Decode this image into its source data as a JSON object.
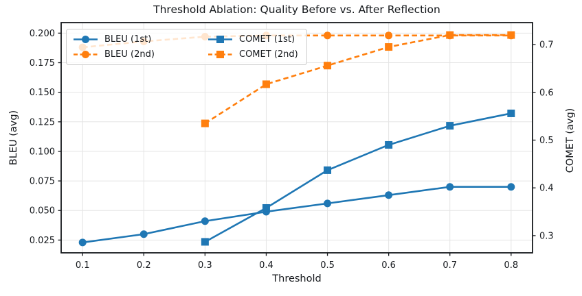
{
  "title": "Threshold Ablation: Quality Before vs. After Reflection",
  "chart_data": {
    "type": "line",
    "title": "Threshold Ablation: Quality Before vs. After Reflection",
    "xlabel": "Threshold",
    "ylabel_left": "BLEU (avg)",
    "ylabel_right": "COMET (avg)",
    "xlim": [
      0.065,
      0.835
    ],
    "ylim_left": [
      0.0142,
      0.2089
    ],
    "ylim_right": [
      0.264,
      0.746
    ],
    "x_ticks": [
      0.1,
      0.2,
      0.3,
      0.4,
      0.5,
      0.6,
      0.7,
      0.8
    ],
    "x_tick_labels": [
      "0.1",
      "0.2",
      "0.3",
      "0.4",
      "0.5",
      "0.6",
      "0.7",
      "0.8"
    ],
    "y_ticks_left": [
      0.025,
      0.05,
      0.075,
      0.1,
      0.125,
      0.15,
      0.175,
      0.2
    ],
    "y_tick_labels_left": [
      "0.025",
      "0.050",
      "0.075",
      "0.100",
      "0.125",
      "0.150",
      "0.175",
      "0.200"
    ],
    "y_ticks_right": [
      0.3,
      0.4,
      0.5,
      0.6,
      0.7
    ],
    "y_tick_labels_right": [
      "0.3",
      "0.4",
      "0.5",
      "0.6",
      "0.7"
    ],
    "grid": true,
    "legend_position": "upper left",
    "series": [
      {
        "name": "BLEU (1st)",
        "axis": "left",
        "color": "#1f77b4",
        "marker": "circle",
        "linestyle": "solid",
        "x": [
          0.1,
          0.2,
          0.3,
          0.4,
          0.5,
          0.6,
          0.7,
          0.8
        ],
        "values": [
          0.023,
          0.03,
          0.041,
          0.049,
          0.056,
          0.063,
          0.07,
          0.07
        ]
      },
      {
        "name": "BLEU (2nd)",
        "axis": "left",
        "color": "#ff7f0e",
        "marker": "circle",
        "linestyle": "dashed",
        "x": [
          0.1,
          0.2,
          0.3,
          0.4,
          0.5,
          0.6,
          0.7,
          0.8
        ],
        "values": [
          0.188,
          0.193,
          0.197,
          0.198,
          0.198,
          0.198,
          0.198,
          0.198
        ]
      },
      {
        "name": "COMET (1st)",
        "axis": "right",
        "color": "#1f77b4",
        "marker": "square",
        "linestyle": "solid",
        "x": [
          0.3,
          0.4,
          0.5,
          0.6,
          0.7,
          0.8
        ],
        "values": [
          0.287,
          0.358,
          0.437,
          0.49,
          0.53,
          0.556
        ]
      },
      {
        "name": "COMET (2nd)",
        "axis": "right",
        "color": "#ff7f0e",
        "marker": "square",
        "linestyle": "dashed",
        "x": [
          0.3,
          0.4,
          0.5,
          0.6,
          0.7,
          0.8
        ],
        "values": [
          0.535,
          0.617,
          0.656,
          0.695,
          0.72,
          0.72
        ]
      }
    ],
    "colors": {
      "blue": "#1f77b4",
      "orange": "#ff7f0e",
      "axis": "#15181c",
      "grid": "#e4e4e4",
      "legend_border": "#cccccc"
    }
  }
}
